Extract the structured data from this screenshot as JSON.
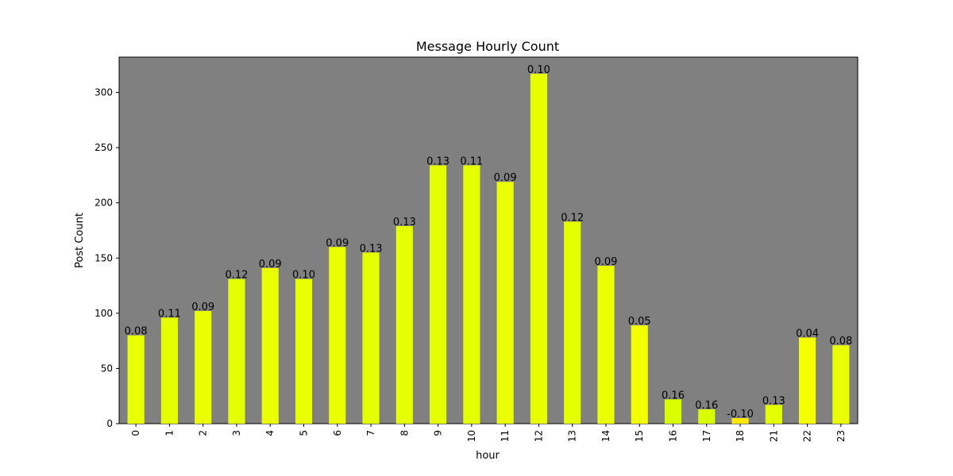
{
  "chart_data": {
    "type": "bar",
    "title": "Message Hourly Count",
    "xlabel": "hour",
    "ylabel": "Post Count",
    "categories": [
      "0",
      "1",
      "2",
      "3",
      "4",
      "5",
      "6",
      "7",
      "8",
      "9",
      "10",
      "11",
      "12",
      "13",
      "14",
      "15",
      "16",
      "17",
      "18",
      "21",
      "22",
      "23"
    ],
    "values": [
      80,
      96,
      102,
      131,
      141,
      131,
      160,
      155,
      179,
      234,
      234,
      219,
      317,
      183,
      143,
      89,
      22,
      13,
      5,
      17,
      78,
      71
    ],
    "data_labels": [
      "0.08",
      "0.11",
      "0.09",
      "0.12",
      "0.09",
      "0.10",
      "0.09",
      "0.13",
      "0.13",
      "0.13",
      "0.11",
      "0.09",
      "0.10",
      "0.12",
      "0.09",
      "0.05",
      "0.16",
      "0.16",
      "-0.10",
      "0.13",
      "0.04",
      "0.08"
    ],
    "bar_colors": [
      "#e9ff00",
      "#e4ff00",
      "#eaff00",
      "#e3ff00",
      "#eaff00",
      "#e8ff00",
      "#eaff00",
      "#e3ff00",
      "#e3ff00",
      "#e3ff00",
      "#e4ff00",
      "#eaff00",
      "#e8ff00",
      "#e3ff00",
      "#eaff00",
      "#f1ff00",
      "#d8ff00",
      "#d8ff00",
      "#ffea00",
      "#e3ff00",
      "#f4ff00",
      "#e9ff00"
    ],
    "ylim": [
      0,
      332
    ],
    "yticks": [
      0,
      50,
      100,
      150,
      200,
      250,
      300
    ],
    "grid": false,
    "plot_background": "#808080"
  }
}
